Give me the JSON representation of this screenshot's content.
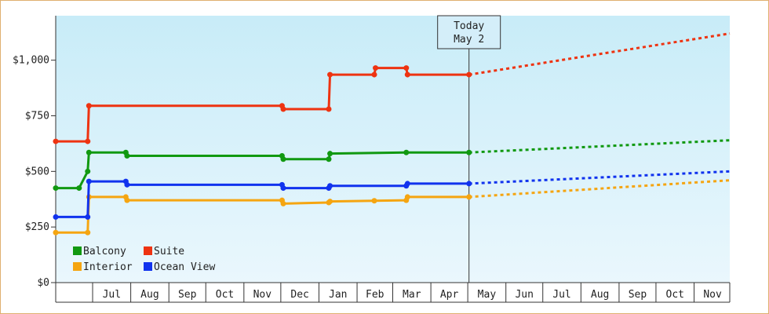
{
  "chart_data": {
    "type": "line",
    "step": true,
    "ylim": [
      0,
      1200
    ],
    "y_ticks": [
      {
        "value": 0,
        "label": "$0"
      },
      {
        "value": 250,
        "label": "$250"
      },
      {
        "value": 500,
        "label": "$500"
      },
      {
        "value": 750,
        "label": "$750"
      },
      {
        "value": 1000,
        "label": "$1,000"
      }
    ],
    "x_range": [
      "2023-06-01",
      "2024-11-30"
    ],
    "months": [
      {
        "label": "Jul",
        "start": "2023-07-01",
        "end": "2023-07-31"
      },
      {
        "label": "Aug",
        "start": "2023-08-01",
        "end": "2023-08-31"
      },
      {
        "label": "Sep",
        "start": "2023-09-01",
        "end": "2023-09-30"
      },
      {
        "label": "Oct",
        "start": "2023-10-01",
        "end": "2023-10-31"
      },
      {
        "label": "Nov",
        "start": "2023-11-01",
        "end": "2023-11-30"
      },
      {
        "label": "Dec",
        "start": "2023-12-01",
        "end": "2023-12-31"
      },
      {
        "label": "Jan",
        "start": "2024-01-01",
        "end": "2024-01-31"
      },
      {
        "label": "Feb",
        "start": "2024-02-01",
        "end": "2024-02-29"
      },
      {
        "label": "Mar",
        "start": "2024-03-01",
        "end": "2024-03-31"
      },
      {
        "label": "Apr",
        "start": "2024-04-01",
        "end": "2024-04-30"
      },
      {
        "label": "May",
        "start": "2024-05-01",
        "end": "2024-05-31"
      },
      {
        "label": "Jun",
        "start": "2024-06-01",
        "end": "2024-06-30"
      },
      {
        "label": "Jul",
        "start": "2024-07-01",
        "end": "2024-07-31"
      },
      {
        "label": "Aug",
        "start": "2024-08-01",
        "end": "2024-08-31"
      },
      {
        "label": "Sep",
        "start": "2024-09-01",
        "end": "2024-09-30"
      },
      {
        "label": "Oct",
        "start": "2024-10-01",
        "end": "2024-10-31"
      },
      {
        "label": "Nov",
        "start": "2024-11-01",
        "end": "2024-11-30"
      }
    ],
    "today": {
      "line1": "Today",
      "line2": "May 2",
      "date": "2024-05-02"
    },
    "legend": {
      "position": "bottom-left"
    },
    "series": [
      {
        "name": "Balcony",
        "color": "#119911",
        "points": [
          {
            "x": "2023-06-01",
            "y": 425
          },
          {
            "x": "2023-06-20",
            "y": 425
          },
          {
            "x": "2023-06-27",
            "y": 500
          },
          {
            "x": "2023-06-28",
            "y": 585
          },
          {
            "x": "2023-07-28",
            "y": 585
          },
          {
            "x": "2023-07-29",
            "y": 570
          },
          {
            "x": "2023-12-02",
            "y": 570
          },
          {
            "x": "2023-12-03",
            "y": 555
          },
          {
            "x": "2024-01-09",
            "y": 555
          },
          {
            "x": "2024-01-10",
            "y": 580
          },
          {
            "x": "2024-03-12",
            "y": 585
          },
          {
            "x": "2024-05-02",
            "y": 585
          }
        ],
        "forecast": [
          {
            "x": "2024-05-02",
            "y": 585
          },
          {
            "x": "2024-11-30",
            "y": 640
          }
        ]
      },
      {
        "name": "Suite",
        "color": "#ee3311",
        "points": [
          {
            "x": "2023-06-01",
            "y": 635
          },
          {
            "x": "2023-06-27",
            "y": 635
          },
          {
            "x": "2023-06-28",
            "y": 795
          },
          {
            "x": "2023-12-02",
            "y": 795
          },
          {
            "x": "2023-12-03",
            "y": 780
          },
          {
            "x": "2024-01-09",
            "y": 780
          },
          {
            "x": "2024-01-10",
            "y": 935
          },
          {
            "x": "2024-02-15",
            "y": 935
          },
          {
            "x": "2024-02-16",
            "y": 965
          },
          {
            "x": "2024-03-12",
            "y": 965
          },
          {
            "x": "2024-03-13",
            "y": 935
          },
          {
            "x": "2024-05-02",
            "y": 935
          }
        ],
        "forecast": [
          {
            "x": "2024-05-02",
            "y": 935
          },
          {
            "x": "2024-11-30",
            "y": 1120
          }
        ]
      },
      {
        "name": "Interior",
        "color": "#f5a511",
        "points": [
          {
            "x": "2023-06-01",
            "y": 225
          },
          {
            "x": "2023-06-27",
            "y": 225
          },
          {
            "x": "2023-06-28",
            "y": 385
          },
          {
            "x": "2023-07-28",
            "y": 385
          },
          {
            "x": "2023-07-29",
            "y": 370
          },
          {
            "x": "2023-12-02",
            "y": 370
          },
          {
            "x": "2023-12-03",
            "y": 355
          },
          {
            "x": "2024-01-09",
            "y": 360
          },
          {
            "x": "2024-01-10",
            "y": 365
          },
          {
            "x": "2024-02-15",
            "y": 368
          },
          {
            "x": "2024-03-12",
            "y": 370
          },
          {
            "x": "2024-03-13",
            "y": 385
          },
          {
            "x": "2024-05-02",
            "y": 385
          }
        ],
        "forecast": [
          {
            "x": "2024-05-02",
            "y": 385
          },
          {
            "x": "2024-11-30",
            "y": 460
          }
        ]
      },
      {
        "name": "Ocean View",
        "color": "#1133ee",
        "points": [
          {
            "x": "2023-06-01",
            "y": 295
          },
          {
            "x": "2023-06-27",
            "y": 295
          },
          {
            "x": "2023-06-28",
            "y": 455
          },
          {
            "x": "2023-07-28",
            "y": 455
          },
          {
            "x": "2023-07-29",
            "y": 440
          },
          {
            "x": "2023-12-02",
            "y": 440
          },
          {
            "x": "2023-12-03",
            "y": 425
          },
          {
            "x": "2024-01-09",
            "y": 425
          },
          {
            "x": "2024-01-10",
            "y": 435
          },
          {
            "x": "2024-03-12",
            "y": 435
          },
          {
            "x": "2024-03-13",
            "y": 445
          },
          {
            "x": "2024-05-02",
            "y": 445
          }
        ],
        "forecast": [
          {
            "x": "2024-05-02",
            "y": 445
          },
          {
            "x": "2024-11-30",
            "y": 500
          }
        ]
      }
    ]
  }
}
